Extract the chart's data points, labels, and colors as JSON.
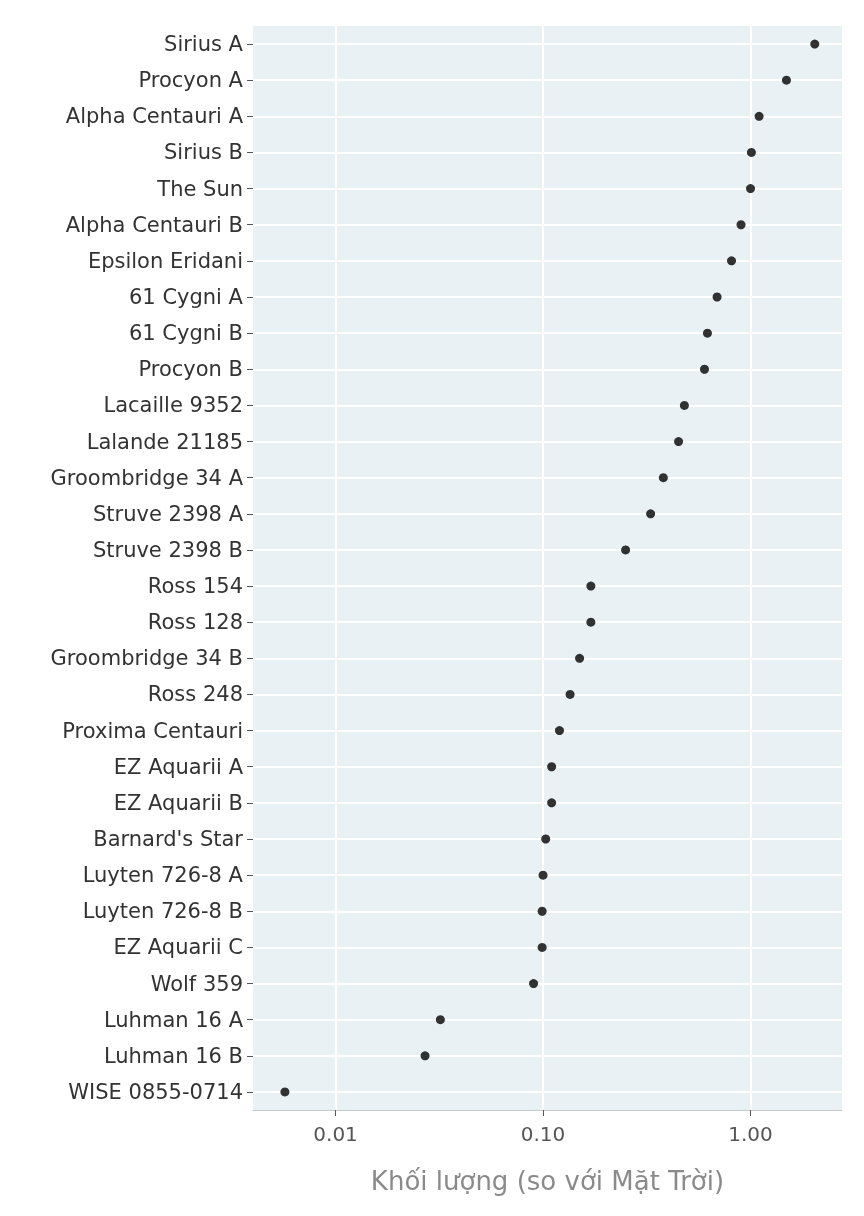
{
  "chart_data": {
    "type": "scatter",
    "xlabel": "Khối lượng (so với Mặt Trời)",
    "categories": [
      "Sirius A",
      "Procyon A",
      "Alpha Centauri A",
      "Sirius B",
      "The Sun",
      "Alpha Centauri B",
      "Epsilon Eridani",
      "61 Cygni A",
      "61 Cygni B",
      "Procyon B",
      "Lacaille 9352",
      "Lalande 21185",
      "Groombridge 34 A",
      "Struve 2398 A",
      "Struve 2398 B",
      "Ross 154",
      "Ross 128",
      "Groombridge 34 B",
      "Ross 248",
      "Proxima Centauri",
      "EZ Aquarii A",
      "EZ Aquarii B",
      "Barnard's Star",
      "Luyten 726-8 A",
      "Luyten 726-8 B",
      "EZ Aquarii C",
      "Wolf 359",
      "Luhman 16 A",
      "Luhman 16 B",
      "WISE 0855-0714"
    ],
    "values": [
      2.04,
      1.49,
      1.1,
      1.01,
      1.0,
      0.9,
      0.81,
      0.69,
      0.62,
      0.6,
      0.48,
      0.45,
      0.38,
      0.33,
      0.25,
      0.17,
      0.17,
      0.15,
      0.135,
      0.12,
      0.11,
      0.11,
      0.103,
      0.1,
      0.099,
      0.099,
      0.09,
      0.032,
      0.027,
      0.0057
    ],
    "color": "#000000",
    "orientation": "horizontal",
    "marker": "circle",
    "log": "x",
    "grid": true,
    "xlim": [
      0.004,
      2.76
    ],
    "xticks": [
      {
        "value": 0.01,
        "label": "0.01"
      },
      {
        "value": 0.1,
        "label": "0.10"
      },
      {
        "value": 1,
        "label": "1.00"
      }
    ]
  }
}
